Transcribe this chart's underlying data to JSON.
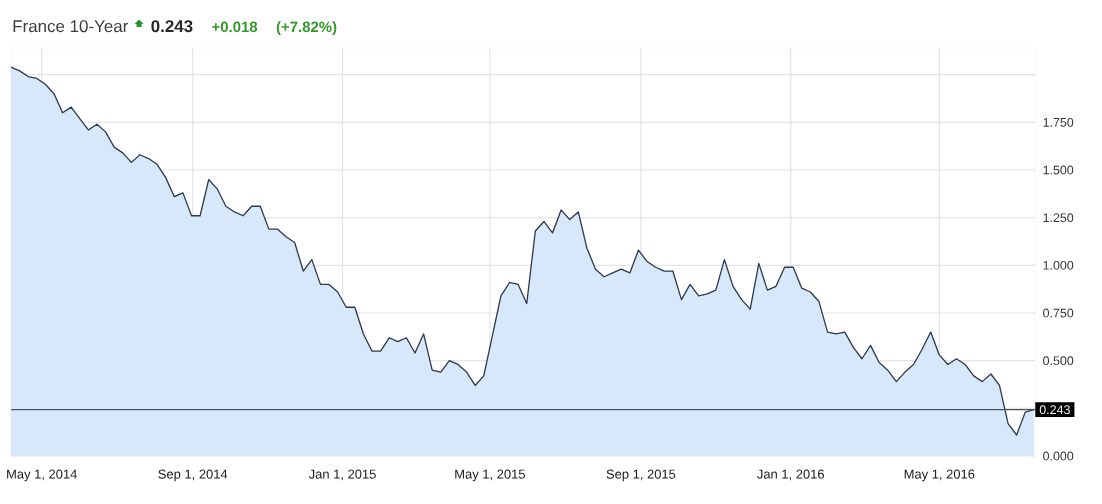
{
  "chart_data": {
    "type": "area",
    "title": "France 10-Year",
    "annotations": [
      "0.243",
      "+0.018",
      "(+7.82%)"
    ],
    "x": [
      "2014-04-06",
      "2014-04-13",
      "2014-04-20",
      "2014-04-27",
      "2014-05-04",
      "2014-05-11",
      "2014-05-18",
      "2014-05-25",
      "2014-06-01",
      "2014-06-08",
      "2014-06-15",
      "2014-06-22",
      "2014-06-29",
      "2014-07-06",
      "2014-07-13",
      "2014-07-20",
      "2014-07-27",
      "2014-08-03",
      "2014-08-10",
      "2014-08-17",
      "2014-08-24",
      "2014-08-31",
      "2014-09-07",
      "2014-09-14",
      "2014-09-21",
      "2014-09-28",
      "2014-10-05",
      "2014-10-12",
      "2014-10-19",
      "2014-10-26",
      "2014-11-02",
      "2014-11-09",
      "2014-11-16",
      "2014-11-23",
      "2014-11-30",
      "2014-12-07",
      "2014-12-14",
      "2014-12-21",
      "2014-12-28",
      "2015-01-04",
      "2015-01-11",
      "2015-01-18",
      "2015-01-25",
      "2015-02-01",
      "2015-02-08",
      "2015-02-15",
      "2015-02-22",
      "2015-03-01",
      "2015-03-08",
      "2015-03-15",
      "2015-03-22",
      "2015-03-29",
      "2015-04-05",
      "2015-04-12",
      "2015-04-19",
      "2015-04-26",
      "2015-05-03",
      "2015-05-10",
      "2015-05-17",
      "2015-05-24",
      "2015-05-31",
      "2015-06-07",
      "2015-06-14",
      "2015-06-21",
      "2015-06-28",
      "2015-07-05",
      "2015-07-12",
      "2015-07-19",
      "2015-07-26",
      "2015-08-02",
      "2015-08-09",
      "2015-08-16",
      "2015-08-23",
      "2015-08-30",
      "2015-09-06",
      "2015-09-13",
      "2015-09-20",
      "2015-09-27",
      "2015-10-04",
      "2015-10-11",
      "2015-10-18",
      "2015-10-25",
      "2015-11-01",
      "2015-11-08",
      "2015-11-15",
      "2015-11-22",
      "2015-11-29",
      "2015-12-06",
      "2015-12-13",
      "2015-12-20",
      "2015-12-27",
      "2016-01-03",
      "2016-01-10",
      "2016-01-17",
      "2016-01-24",
      "2016-01-31",
      "2016-02-07",
      "2016-02-14",
      "2016-02-21",
      "2016-02-28",
      "2016-03-06",
      "2016-03-13",
      "2016-03-20",
      "2016-03-27",
      "2016-04-03",
      "2016-04-10",
      "2016-04-17",
      "2016-04-24",
      "2016-05-01",
      "2016-05-08",
      "2016-05-15",
      "2016-05-22",
      "2016-05-29",
      "2016-06-05",
      "2016-06-12",
      "2016-06-19",
      "2016-06-26",
      "2016-07-03",
      "2016-07-10",
      "2016-07-17"
    ],
    "series": [
      {
        "color": "#d7e8fa",
        "values": [
          2.04,
          2.02,
          1.99,
          1.98,
          1.95,
          1.9,
          1.8,
          1.83,
          1.77,
          1.71,
          1.74,
          1.7,
          1.62,
          1.59,
          1.54,
          1.58,
          1.56,
          1.53,
          1.46,
          1.36,
          1.38,
          1.26,
          1.26,
          1.45,
          1.4,
          1.31,
          1.28,
          1.26,
          1.31,
          1.31,
          1.19,
          1.19,
          1.15,
          1.12,
          0.97,
          1.03,
          0.9,
          0.9,
          0.86,
          0.78,
          0.78,
          0.64,
          0.55,
          0.55,
          0.62,
          0.6,
          0.62,
          0.54,
          0.64,
          0.45,
          0.44,
          0.5,
          0.48,
          0.44,
          0.37,
          0.42,
          0.63,
          0.84,
          0.91,
          0.9,
          0.8,
          1.18,
          1.23,
          1.17,
          1.29,
          1.24,
          1.28,
          1.09,
          0.98,
          0.94,
          0.96,
          0.98,
          0.96,
          1.08,
          1.02,
          0.99,
          0.97,
          0.97,
          0.82,
          0.9,
          0.84,
          0.85,
          0.87,
          1.03,
          0.89,
          0.82,
          0.77,
          1.01,
          0.87,
          0.89,
          0.99,
          0.99,
          0.88,
          0.86,
          0.81,
          0.65,
          0.64,
          0.65,
          0.57,
          0.51,
          0.58,
          0.49,
          0.45,
          0.39,
          0.44,
          0.48,
          0.56,
          0.65,
          0.53,
          0.48,
          0.51,
          0.48,
          0.42,
          0.39,
          0.43,
          0.37,
          0.17,
          0.11,
          0.23,
          0.243
        ]
      }
    ],
    "xlim": [
      "2014-04-06",
      "2016-07-18"
    ],
    "xticks": [
      {
        "value": "2014-05-01",
        "label": "May 1, 2014"
      },
      {
        "value": "2014-09-01",
        "label": "Sep 1, 2014"
      },
      {
        "value": "2015-01-01",
        "label": "Jan 1, 2015"
      },
      {
        "value": "2015-05-01",
        "label": "May 1, 2015"
      },
      {
        "value": "2015-09-01",
        "label": "Sep 1, 2015"
      },
      {
        "value": "2016-01-01",
        "label": "Jan 1, 2016"
      },
      {
        "value": "2016-05-01",
        "label": "May 1, 2016"
      }
    ],
    "ylim": [
      0,
      2.14
    ],
    "yticks": [
      {
        "value": 0,
        "label": "0.000"
      },
      {
        "value": 0.25,
        "label": null
      },
      {
        "value": 0.5,
        "label": "0.500"
      },
      {
        "value": 0.75,
        "label": "0.750"
      },
      {
        "value": 1,
        "label": "1.000"
      },
      {
        "value": 1.25,
        "label": "1.250"
      },
      {
        "value": 1.5,
        "label": "1.500"
      },
      {
        "value": 1.75,
        "label": "1.750"
      },
      {
        "value": 2,
        "label": null
      }
    ],
    "ref_lines": [
      {
        "axis": "y",
        "value": 0.243,
        "label": "0.243",
        "color": "#4a5360"
      }
    ],
    "grid": true
  }
}
